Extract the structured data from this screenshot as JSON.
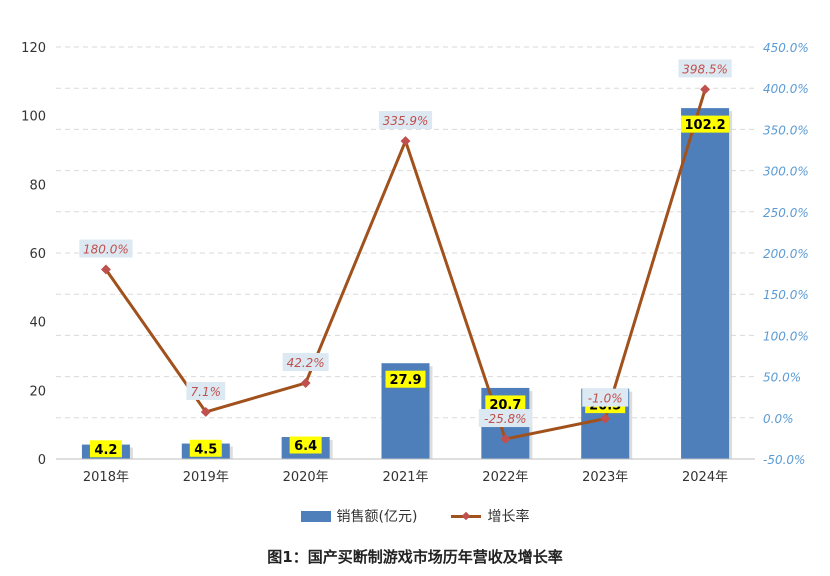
{
  "chart_data": {
    "type": "bar",
    "categories": [
      "2018年",
      "2019年",
      "2020年",
      "2021年",
      "2022年",
      "2023年",
      "2024年"
    ],
    "series": [
      {
        "name": "销售额(亿元)",
        "type": "bar",
        "axis": "left",
        "values": [
          4.2,
          4.5,
          6.4,
          27.9,
          20.7,
          20.5,
          102.2
        ],
        "labels": [
          "4.2",
          "4.5",
          "6.4",
          "27.9",
          "20.7",
          "20.5",
          "102.2"
        ]
      },
      {
        "name": "增长率",
        "type": "line",
        "axis": "right",
        "values": [
          180.0,
          7.1,
          42.2,
          335.9,
          -25.8,
          -1.0,
          398.5
        ],
        "labels": [
          "180.0%",
          "7.1%",
          "42.2%",
          "335.9%",
          "-25.8%",
          "-1.0%",
          "398.5%"
        ]
      }
    ],
    "ylim": [
      0,
      120
    ],
    "yticks": [
      "0",
      "20",
      "40",
      "60",
      "80",
      "100",
      "120"
    ],
    "y2lim": [
      -50,
      450
    ],
    "y2ticks": [
      "-50.0%",
      "0.0%",
      "50.0%",
      "100.0%",
      "150.0%",
      "200.0%",
      "250.0%",
      "300.0%",
      "350.0%",
      "400.0%",
      "450.0%"
    ],
    "grid": true,
    "legend": "bottom",
    "caption": "图1：国产买断制游戏市场历年营收及增长率"
  },
  "colors": {
    "bar": "#4e7fbb",
    "line": "#a0511c",
    "marker": "#c0504d",
    "bar_label_bg": "#ffff00",
    "line_label_bg": "#dde9f2",
    "line_label_text": "#c0504d",
    "right_axis": "#5b9bd5",
    "grid": "#d9d9d9"
  }
}
